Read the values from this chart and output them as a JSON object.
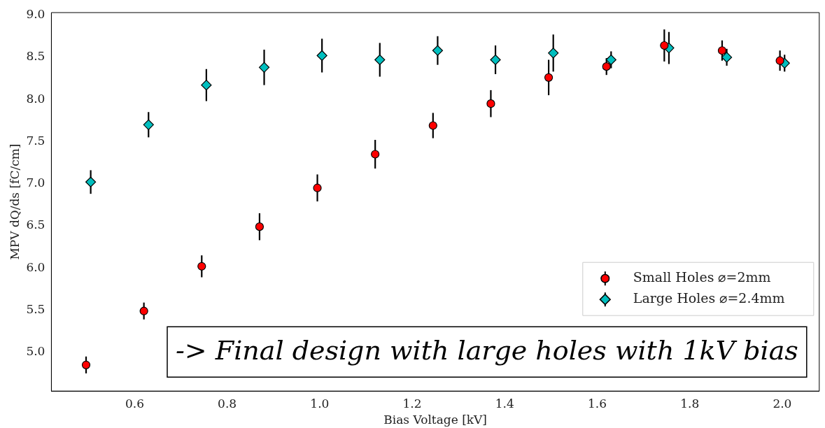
{
  "chart_data": {
    "type": "scatter",
    "xlabel": "Bias Voltage [kV]",
    "ylabel": "MPV dQ/ds [fC/cm]",
    "xlim": [
      0.42,
      2.08
    ],
    "xticks": [
      {
        "value": 0.6,
        "label": "0.6"
      },
      {
        "value": 0.8,
        "label": "0.8"
      },
      {
        "value": 1.0,
        "label": "1.0"
      },
      {
        "value": 1.2,
        "label": "1.2"
      },
      {
        "value": 1.4,
        "label": "1.4"
      },
      {
        "value": 1.6,
        "label": "1.6"
      },
      {
        "value": 1.8,
        "label": "1.8"
      },
      {
        "value": 2.0,
        "label": "2.0"
      }
    ],
    "ylim": [
      4.54,
      9.03
    ],
    "yticks": [
      {
        "value": 5.0,
        "label": "5.0"
      },
      {
        "value": 5.5,
        "label": "5.5"
      },
      {
        "value": 6.0,
        "label": "6.0"
      },
      {
        "value": 6.5,
        "label": "6.5"
      },
      {
        "value": 7.0,
        "label": "7.0"
      },
      {
        "value": 7.5,
        "label": "7.5"
      },
      {
        "value": 8.0,
        "label": "8.0"
      },
      {
        "value": 8.5,
        "label": "8.5"
      },
      {
        "value": 9.0,
        "label": "9.0"
      }
    ],
    "grid": false,
    "legend": "bottom right",
    "series": [
      {
        "name": "Small Holes ⌀=2mm",
        "color": "#ff0000",
        "marker": "circle",
        "x": [
          0.495,
          0.62,
          0.745,
          0.87,
          0.995,
          1.12,
          1.245,
          1.37,
          1.495,
          1.62,
          1.745,
          1.87,
          1.995
        ],
        "values": [
          4.85,
          5.49,
          6.02,
          6.49,
          6.95,
          7.35,
          7.69,
          7.95,
          8.26,
          8.39,
          8.64,
          8.58,
          8.46
        ],
        "errors": [
          0.1,
          0.1,
          0.13,
          0.16,
          0.16,
          0.17,
          0.15,
          0.16,
          0.21,
          0.1,
          0.19,
          0.12,
          0.12
        ]
      },
      {
        "name": "Large Holes ⌀=2.4mm",
        "color": "#00bfbf",
        "marker": "diamond",
        "x": [
          0.505,
          0.63,
          0.755,
          0.88,
          1.005,
          1.13,
          1.255,
          1.38,
          1.505,
          1.63,
          1.755,
          1.88,
          2.005
        ],
        "values": [
          7.02,
          7.7,
          8.17,
          8.38,
          8.52,
          8.47,
          8.58,
          8.47,
          8.55,
          8.47,
          8.61,
          8.5,
          8.43
        ],
        "errors": [
          0.14,
          0.15,
          0.19,
          0.21,
          0.2,
          0.2,
          0.17,
          0.17,
          0.22,
          0.1,
          0.19,
          0.1,
          0.1
        ]
      }
    ],
    "annotations": [
      "-> Final design with large holes with 1kV bias"
    ]
  }
}
